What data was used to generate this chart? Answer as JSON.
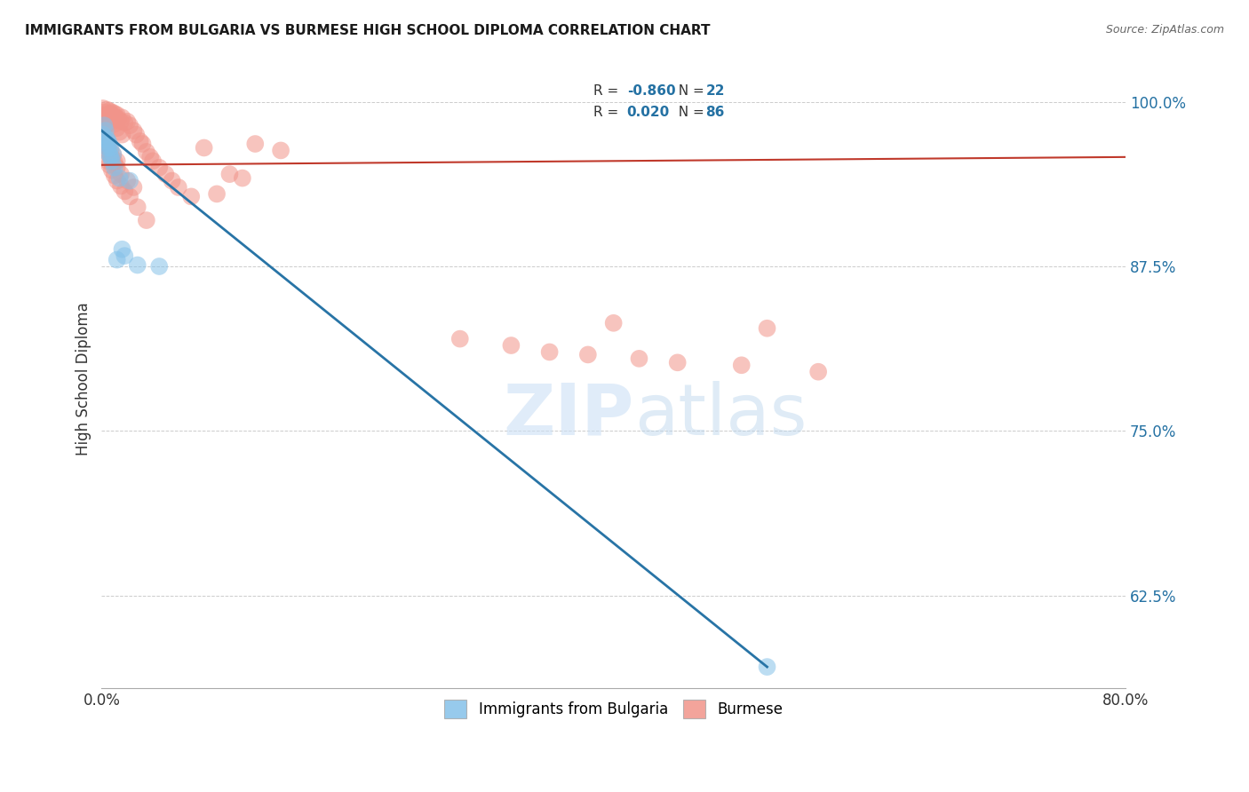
{
  "title": "IMMIGRANTS FROM BULGARIA VS BURMESE HIGH SCHOOL DIPLOMA CORRELATION CHART",
  "source": "Source: ZipAtlas.com",
  "ylabel": "High School Diploma",
  "ytick_labels": [
    "100.0%",
    "87.5%",
    "75.0%",
    "62.5%"
  ],
  "ytick_values": [
    1.0,
    0.875,
    0.75,
    0.625
  ],
  "xmin": 0.0,
  "xmax": 0.8,
  "ymin": 0.555,
  "ymax": 1.025,
  "legend_R_bulgaria": "-0.860",
  "legend_N_bulgaria": "22",
  "legend_R_burmese": "0.020",
  "legend_N_burmese": "86",
  "color_bulgaria": "#85c1e9",
  "color_burmese": "#f1948a",
  "color_line_bulgaria": "#2874a6",
  "color_line_burmese": "#c0392b",
  "bulgaria_x": [
    0.001,
    0.002,
    0.003,
    0.004,
    0.004,
    0.005,
    0.005,
    0.006,
    0.006,
    0.007,
    0.007,
    0.008,
    0.009,
    0.01,
    0.012,
    0.014,
    0.016,
    0.018,
    0.022,
    0.028,
    0.045,
    0.52
  ],
  "bulgaria_y": [
    0.975,
    0.982,
    0.978,
    0.972,
    0.968,
    0.97,
    0.965,
    0.968,
    0.96,
    0.965,
    0.958,
    0.955,
    0.96,
    0.95,
    0.88,
    0.942,
    0.888,
    0.883,
    0.94,
    0.876,
    0.875,
    0.571
  ],
  "burmese_x": [
    0.001,
    0.002,
    0.003,
    0.003,
    0.004,
    0.005,
    0.005,
    0.006,
    0.006,
    0.007,
    0.007,
    0.008,
    0.009,
    0.01,
    0.011,
    0.012,
    0.013,
    0.015,
    0.016,
    0.018,
    0.02,
    0.022,
    0.025,
    0.027,
    0.03,
    0.032,
    0.035,
    0.038,
    0.04,
    0.045,
    0.05,
    0.055,
    0.06,
    0.07,
    0.08,
    0.09,
    0.1,
    0.11,
    0.12,
    0.14,
    0.002,
    0.003,
    0.004,
    0.006,
    0.007,
    0.008,
    0.01,
    0.012,
    0.014,
    0.016,
    0.003,
    0.004,
    0.005,
    0.006,
    0.008,
    0.01,
    0.012,
    0.015,
    0.02,
    0.025,
    0.005,
    0.006,
    0.008,
    0.01,
    0.012,
    0.015,
    0.018,
    0.022,
    0.028,
    0.035,
    0.002,
    0.003,
    0.005,
    0.007,
    0.009,
    0.012,
    0.28,
    0.32,
    0.35,
    0.38,
    0.4,
    0.42,
    0.45,
    0.5,
    0.52,
    0.56
  ],
  "burmese_y": [
    0.995,
    0.992,
    0.99,
    0.988,
    0.994,
    0.99,
    0.987,
    0.993,
    0.989,
    0.991,
    0.987,
    0.992,
    0.989,
    0.991,
    0.988,
    0.99,
    0.987,
    0.985,
    0.988,
    0.984,
    0.985,
    0.982,
    0.978,
    0.975,
    0.97,
    0.968,
    0.962,
    0.958,
    0.955,
    0.95,
    0.945,
    0.94,
    0.935,
    0.928,
    0.965,
    0.93,
    0.945,
    0.942,
    0.968,
    0.963,
    0.984,
    0.986,
    0.983,
    0.985,
    0.984,
    0.986,
    0.983,
    0.98,
    0.977,
    0.975,
    0.968,
    0.966,
    0.963,
    0.96,
    0.957,
    0.954,
    0.95,
    0.945,
    0.94,
    0.935,
    0.955,
    0.952,
    0.948,
    0.944,
    0.94,
    0.936,
    0.932,
    0.928,
    0.92,
    0.91,
    0.972,
    0.97,
    0.965,
    0.963,
    0.96,
    0.955,
    0.82,
    0.815,
    0.81,
    0.808,
    0.832,
    0.805,
    0.802,
    0.8,
    0.828,
    0.795
  ],
  "bg_line_x0": 0.0,
  "bg_line_x1": 0.52,
  "bg_line_y0": 0.978,
  "bg_line_y1": 0.571,
  "bm_line_x0": 0.0,
  "bm_line_x1": 0.8,
  "bm_line_y0": 0.952,
  "bm_line_y1": 0.958
}
